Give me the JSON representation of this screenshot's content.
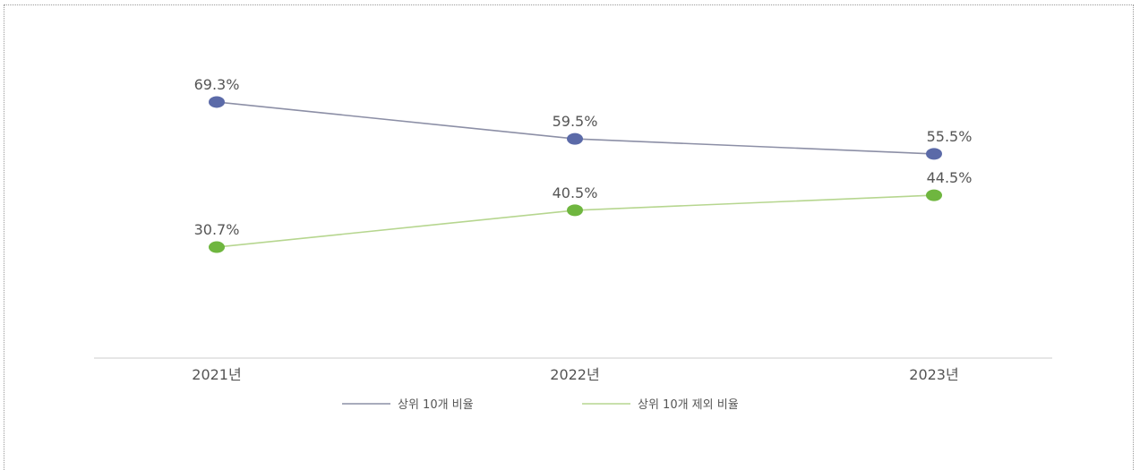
{
  "chart_data": {
    "type": "line",
    "categories": [
      "2021년",
      "2022년",
      "2023년"
    ],
    "series": [
      {
        "name": "상위 10개 비율",
        "values": [
          69.3,
          59.5,
          55.5
        ],
        "labels": [
          "69.3%",
          "59.5%",
          "55.5%"
        ],
        "color": "#5b6aa8",
        "line_color": "#8c8fa6"
      },
      {
        "name": "상위 10개 제외 비율",
        "values": [
          30.7,
          40.5,
          44.5
        ],
        "labels": [
          "30.7%",
          "40.5%",
          "44.5%"
        ],
        "color": "#6fb63f",
        "line_color": "#b6d68f"
      }
    ],
    "ylim": [
      0,
      100
    ],
    "grid": false,
    "legend": "bottom-center"
  }
}
